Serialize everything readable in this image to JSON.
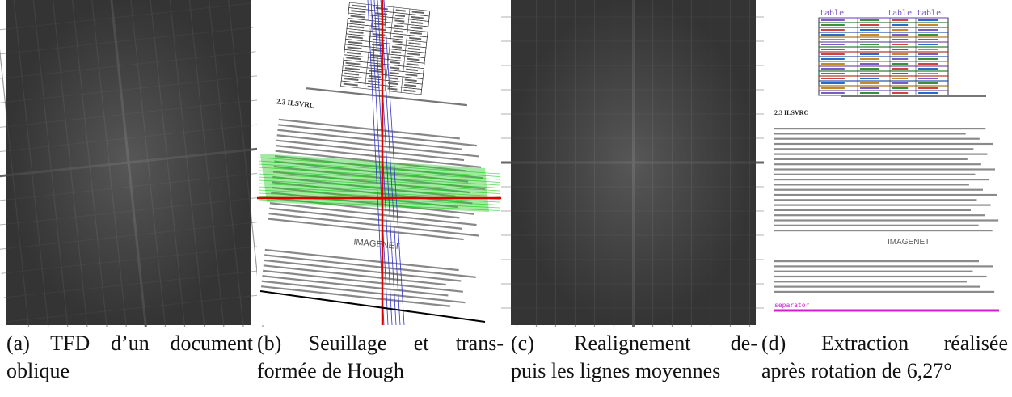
{
  "figures": [
    {
      "caption_lines": [
        "(a) TFD d’un document",
        "oblique"
      ]
    },
    {
      "caption_lines": [
        "(b) Seuillage et trans-",
        "formée de Hough"
      ],
      "texts": [
        "2.3 ILSVRC",
        "IMAGENET"
      ]
    },
    {
      "caption_lines": [
        "(c) Realignement de-",
        "puis les lignes moyennes"
      ]
    },
    {
      "caption_lines": [
        "(d) Extraction réalisée",
        "après rotation de 6,27°"
      ],
      "texts": [
        "table",
        "table",
        "table",
        "2.3 ILSVRC",
        "IMAGENET",
        "separator"
      ]
    }
  ]
}
